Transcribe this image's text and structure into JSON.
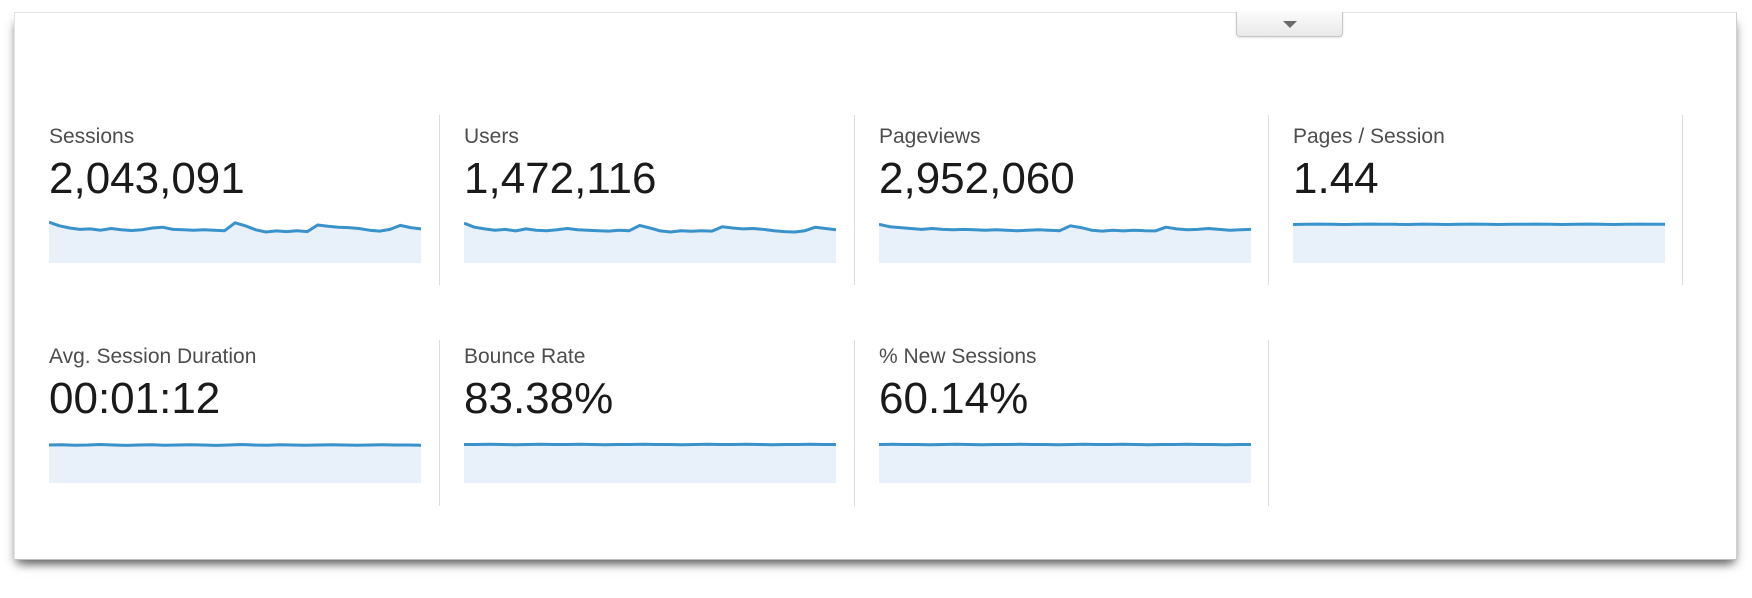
{
  "header": {
    "collapse_button": {
      "icon": "triangle-down"
    }
  },
  "colors": {
    "spark_line": "#3a92cb",
    "spark_fill": "#e8f1f9",
    "divider": "#dcdcdc",
    "label_text": "#4d4d4d",
    "value_text": "#1a1a1a"
  },
  "metrics": [
    {
      "label": "Sessions",
      "value": "2,043,091",
      "spark": [
        0.95,
        0.78,
        0.68,
        0.62,
        0.64,
        0.58,
        0.66,
        0.6,
        0.57,
        0.6,
        0.68,
        0.72,
        0.62,
        0.6,
        0.58,
        0.6,
        0.58,
        0.56,
        0.92,
        0.78,
        0.6,
        0.5,
        0.55,
        0.52,
        0.56,
        0.52,
        0.82,
        0.76,
        0.72,
        0.7,
        0.66,
        0.58,
        0.54,
        0.62,
        0.8,
        0.7,
        0.64
      ]
    },
    {
      "label": "Users",
      "value": "1,472,116",
      "spark": [
        0.9,
        0.72,
        0.64,
        0.58,
        0.62,
        0.55,
        0.64,
        0.58,
        0.56,
        0.6,
        0.66,
        0.6,
        0.58,
        0.56,
        0.54,
        0.58,
        0.56,
        0.8,
        0.68,
        0.55,
        0.5,
        0.56,
        0.53,
        0.56,
        0.54,
        0.74,
        0.68,
        0.64,
        0.66,
        0.62,
        0.56,
        0.52,
        0.5,
        0.56,
        0.72,
        0.66,
        0.6
      ]
    },
    {
      "label": "Pageviews",
      "value": "2,952,060",
      "spark": [
        0.85,
        0.74,
        0.7,
        0.66,
        0.62,
        0.66,
        0.62,
        0.6,
        0.62,
        0.6,
        0.58,
        0.6,
        0.58,
        0.56,
        0.58,
        0.6,
        0.58,
        0.56,
        0.78,
        0.7,
        0.58,
        0.54,
        0.58,
        0.55,
        0.58,
        0.56,
        0.55,
        0.72,
        0.64,
        0.6,
        0.62,
        0.66,
        0.62,
        0.58,
        0.6,
        0.62
      ]
    },
    {
      "label": "Pages / Session",
      "value": "1.44",
      "spark": [
        0.84,
        0.85,
        0.86,
        0.85,
        0.84,
        0.85,
        0.86,
        0.85,
        0.85,
        0.84,
        0.86,
        0.85,
        0.84,
        0.85,
        0.86,
        0.85,
        0.84,
        0.85,
        0.85,
        0.86,
        0.85,
        0.84,
        0.85,
        0.86,
        0.85,
        0.84,
        0.85,
        0.86,
        0.85,
        0.85
      ]
    },
    {
      "label": "Avg. Session Duration",
      "value": "00:01:12",
      "spark": [
        0.82,
        0.83,
        0.81,
        0.82,
        0.84,
        0.82,
        0.8,
        0.82,
        0.83,
        0.81,
        0.82,
        0.83,
        0.82,
        0.8,
        0.82,
        0.84,
        0.82,
        0.81,
        0.83,
        0.82,
        0.81,
        0.82,
        0.83,
        0.82,
        0.81,
        0.82,
        0.83,
        0.82,
        0.82,
        0.81
      ]
    },
    {
      "label": "Bounce Rate",
      "value": "83.38%",
      "spark": [
        0.84,
        0.84,
        0.85,
        0.84,
        0.83,
        0.84,
        0.85,
        0.84,
        0.84,
        0.85,
        0.84,
        0.83,
        0.84,
        0.84,
        0.85,
        0.84,
        0.84,
        0.83,
        0.84,
        0.85,
        0.84,
        0.84,
        0.85,
        0.84,
        0.83,
        0.84,
        0.84,
        0.85,
        0.84,
        0.84
      ]
    },
    {
      "label": "% New Sessions",
      "value": "60.14%",
      "spark": [
        0.84,
        0.85,
        0.84,
        0.84,
        0.83,
        0.84,
        0.85,
        0.84,
        0.83,
        0.84,
        0.84,
        0.85,
        0.84,
        0.84,
        0.83,
        0.84,
        0.85,
        0.84,
        0.84,
        0.85,
        0.84,
        0.83,
        0.84,
        0.84,
        0.85,
        0.84,
        0.84,
        0.83,
        0.84,
        0.84
      ]
    }
  ]
}
